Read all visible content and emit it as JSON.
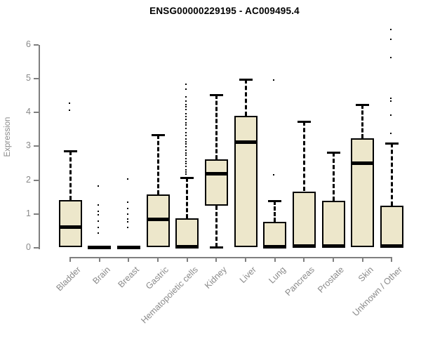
{
  "title": "ENSG00000229195 - AC009495.4",
  "chart_data": {
    "type": "boxplot",
    "title": "ENSG00000229195 - AC009495.4",
    "ylabel": "Expression",
    "xlabel": "",
    "ylim": [
      0,
      6.6
    ],
    "yticks": [
      0,
      1,
      2,
      3,
      4,
      5,
      6
    ],
    "grid": false,
    "legend": "none",
    "categories": [
      "Bladder",
      "Brain",
      "Breast",
      "Gastric",
      "Hematopoietic cells",
      "Kidney",
      "Liver",
      "Lung",
      "Pancreas",
      "Prostate",
      "Skin",
      "Unknown / Other"
    ],
    "series": [
      {
        "name": "Bladder",
        "q1": 0.03,
        "median": 0.62,
        "q3": 1.42,
        "whisker_low": 0.03,
        "whisker_high": 2.87,
        "outliers": [
          4.03,
          4.24
        ]
      },
      {
        "name": "Brain",
        "q1": 0.0,
        "median": 0.02,
        "q3": 0.04,
        "whisker_low": 0.0,
        "whisker_high": 0.04,
        "outliers": [
          0.41,
          0.58,
          0.75,
          0.95,
          1.04,
          1.24,
          1.8
        ]
      },
      {
        "name": "Breast",
        "q1": 0.0,
        "median": 0.02,
        "q3": 0.04,
        "whisker_low": 0.0,
        "whisker_high": 0.04,
        "outliers": [
          0.58,
          0.73,
          0.81,
          0.96,
          1.14,
          1.31,
          2.01
        ]
      },
      {
        "name": "Gastric",
        "q1": 0.02,
        "median": 0.85,
        "q3": 1.57,
        "whisker_low": 0.02,
        "whisker_high": 3.34,
        "outliers": []
      },
      {
        "name": "Hematopoietic cells",
        "q1": 0.0,
        "median": 0.04,
        "q3": 0.87,
        "whisker_low": 0.0,
        "whisker_high": 2.08,
        "outliers": [
          2.14,
          2.2,
          2.28,
          2.37,
          2.45,
          2.53,
          2.61,
          2.7,
          2.78,
          2.86,
          2.95,
          3.03,
          3.11,
          3.18,
          3.28,
          3.38,
          3.49,
          3.59,
          3.67,
          3.76,
          3.84,
          3.94,
          4.05,
          4.13,
          4.21,
          4.31,
          4.42,
          4.65,
          4.8
        ]
      },
      {
        "name": "Kidney",
        "q1": 1.25,
        "median": 2.18,
        "q3": 2.62,
        "whisker_low": 0.02,
        "whisker_high": 4.53,
        "outliers": []
      },
      {
        "name": "Liver",
        "q1": 0.02,
        "median": 3.13,
        "q3": 3.9,
        "whisker_low": 0.02,
        "whisker_high": 4.97,
        "outliers": []
      },
      {
        "name": "Lung",
        "q1": 0.01,
        "median": 0.04,
        "q3": 0.76,
        "whisker_low": 0.01,
        "whisker_high": 1.39,
        "outliers": [
          2.12,
          4.93
        ]
      },
      {
        "name": "Pancreas",
        "q1": 0.01,
        "median": 0.05,
        "q3": 1.67,
        "whisker_low": 0.01,
        "whisker_high": 3.73,
        "outliers": []
      },
      {
        "name": "Prostate",
        "q1": 0.01,
        "median": 0.05,
        "q3": 1.38,
        "whisker_low": 0.01,
        "whisker_high": 2.83,
        "outliers": []
      },
      {
        "name": "Skin",
        "q1": 0.02,
        "median": 2.51,
        "q3": 3.24,
        "whisker_low": 0.02,
        "whisker_high": 4.24,
        "outliers": []
      },
      {
        "name": "Unknown / Other",
        "q1": 0.01,
        "median": 0.05,
        "q3": 1.25,
        "whisker_low": 0.01,
        "whisker_high": 3.09,
        "outliers": [
          3.36,
          3.88,
          4.31,
          4.38,
          5.6,
          6.14,
          6.43
        ]
      }
    ],
    "colors": {
      "box_fill": "#EDE7CB",
      "box_border": "#000000",
      "median": "#000000",
      "whisker": "#000000",
      "outlier_border": "#000000",
      "outlier_fill": "#FFFFFF",
      "axis": "#7F7F7F",
      "tick_label": "#8A8A8A",
      "title": "#000000",
      "background": "#FFFFFF"
    }
  }
}
